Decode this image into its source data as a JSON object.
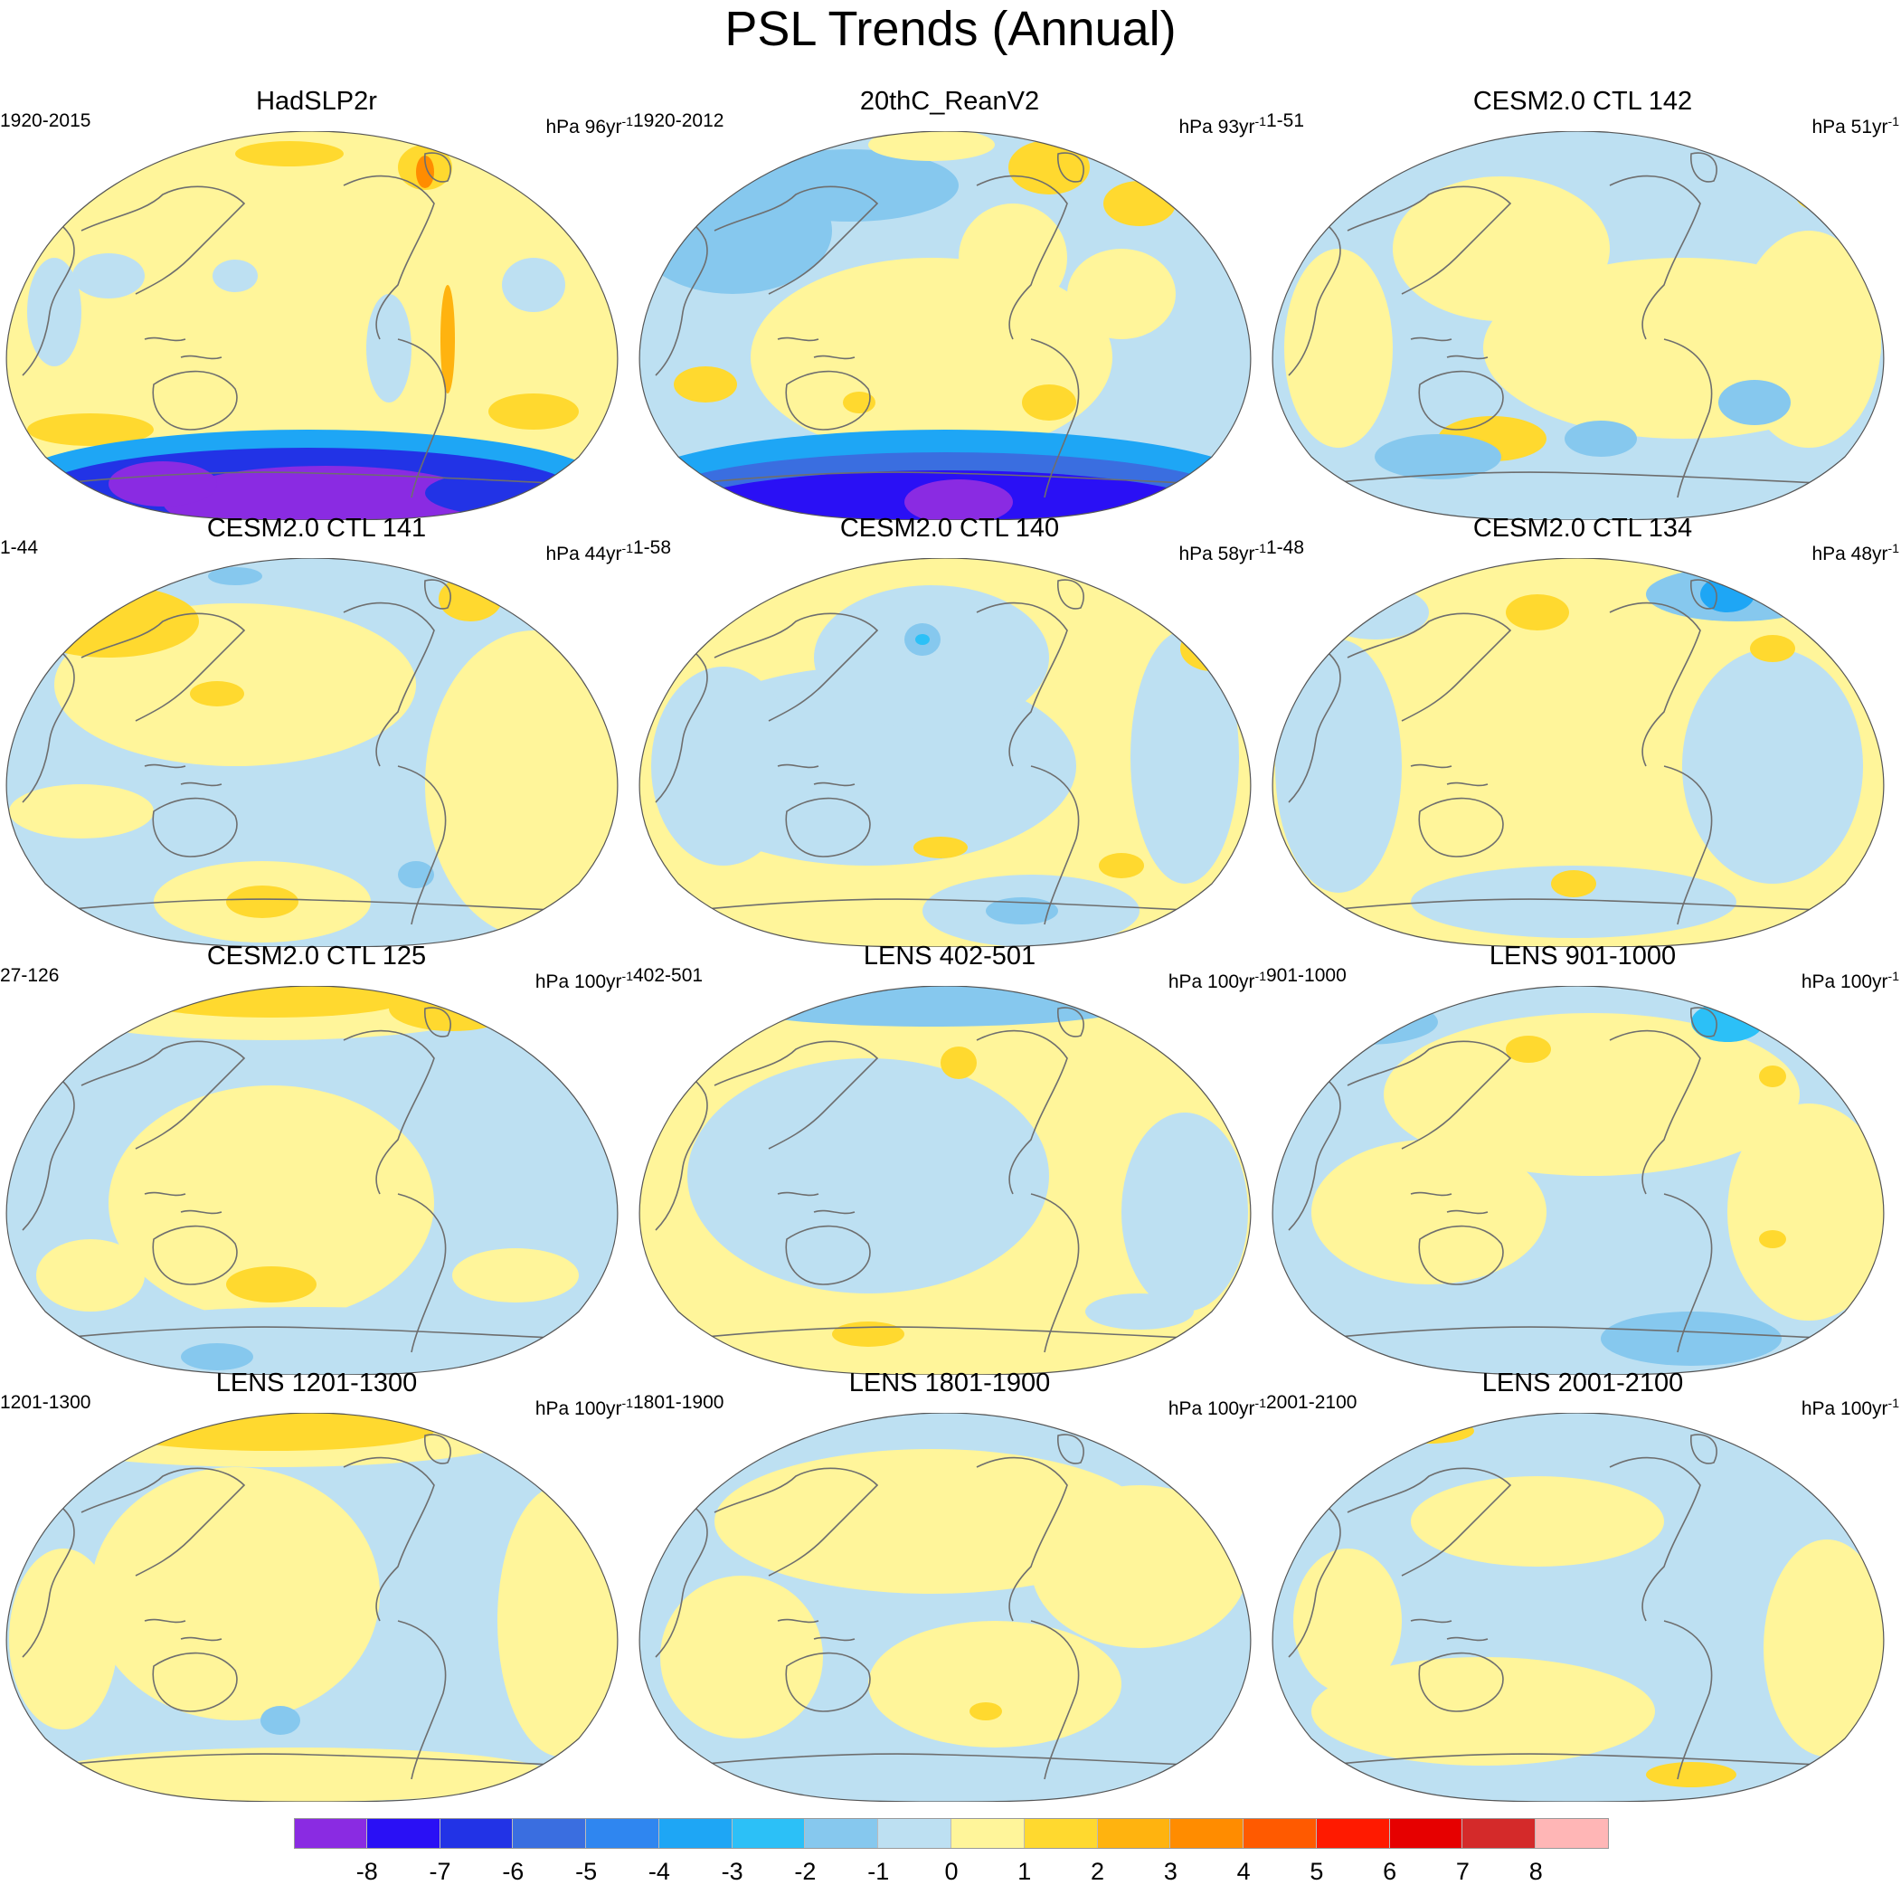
{
  "figure": {
    "title": "PSL Trends (Annual)"
  },
  "panels": [
    {
      "title": "HadSLP2r",
      "period": "1920-2015",
      "units_prefix": "hPa 96yr",
      "units_exp": "-1",
      "style": "obs"
    },
    {
      "title": "20thC_ReanV2",
      "period": "1920-2012",
      "units_prefix": "hPa 93yr",
      "units_exp": "-1",
      "style": "rean"
    },
    {
      "title": "CESM2.0 CTL 142",
      "period": "1-51",
      "units_prefix": "hPa 51yr",
      "units_exp": "-1",
      "style": "m1"
    },
    {
      "title": "CESM2.0 CTL 141",
      "period": "1-44",
      "units_prefix": "hPa 44yr",
      "units_exp": "-1",
      "style": "m2"
    },
    {
      "title": "CESM2.0 CTL 140",
      "period": "1-58",
      "units_prefix": "hPa 58yr",
      "units_exp": "-1",
      "style": "m3"
    },
    {
      "title": "CESM2.0 CTL 134",
      "period": "1-48",
      "units_prefix": "hPa 48yr",
      "units_exp": "-1",
      "style": "m4"
    },
    {
      "title": "CESM2.0 CTL 125",
      "period": "27-126",
      "units_prefix": "hPa 100yr",
      "units_exp": "-1",
      "style": "m5"
    },
    {
      "title": "LENS 402-501",
      "period": "402-501",
      "units_prefix": "hPa 100yr",
      "units_exp": "-1",
      "style": "m6"
    },
    {
      "title": "LENS 901-1000",
      "period": "901-1000",
      "units_prefix": "hPa 100yr",
      "units_exp": "-1",
      "style": "m7"
    },
    {
      "title": "LENS 1201-1300",
      "period": "1201-1300",
      "units_prefix": "hPa 100yr",
      "units_exp": "-1",
      "style": "m8"
    },
    {
      "title": "LENS 1801-1900",
      "period": "1801-1900",
      "units_prefix": "hPa 100yr",
      "units_exp": "-1",
      "style": "m9"
    },
    {
      "title": "LENS 2001-2100",
      "period": "2001-2100",
      "units_prefix": "hPa 100yr",
      "units_exp": "-1",
      "style": "m10"
    }
  ],
  "colorbar": {
    "colors": [
      "#8a2be2",
      "#2a10f5",
      "#2233e6",
      "#3a6ee0",
      "#2f86f0",
      "#1ea6f5",
      "#2cc0f7",
      "#86c8ee",
      "#bde0f2",
      "#fff59a",
      "#ffd92f",
      "#ffb30f",
      "#ff8c00",
      "#ff5a00",
      "#ff1a00",
      "#e60000",
      "#d42a2a",
      "#ffb6b6"
    ],
    "labels": [
      "-8",
      "-7",
      "-6",
      "-5",
      "-4",
      "-3",
      "-2",
      "-1",
      "0",
      "1",
      "2",
      "3",
      "4",
      "5",
      "6",
      "7",
      "8"
    ]
  }
}
